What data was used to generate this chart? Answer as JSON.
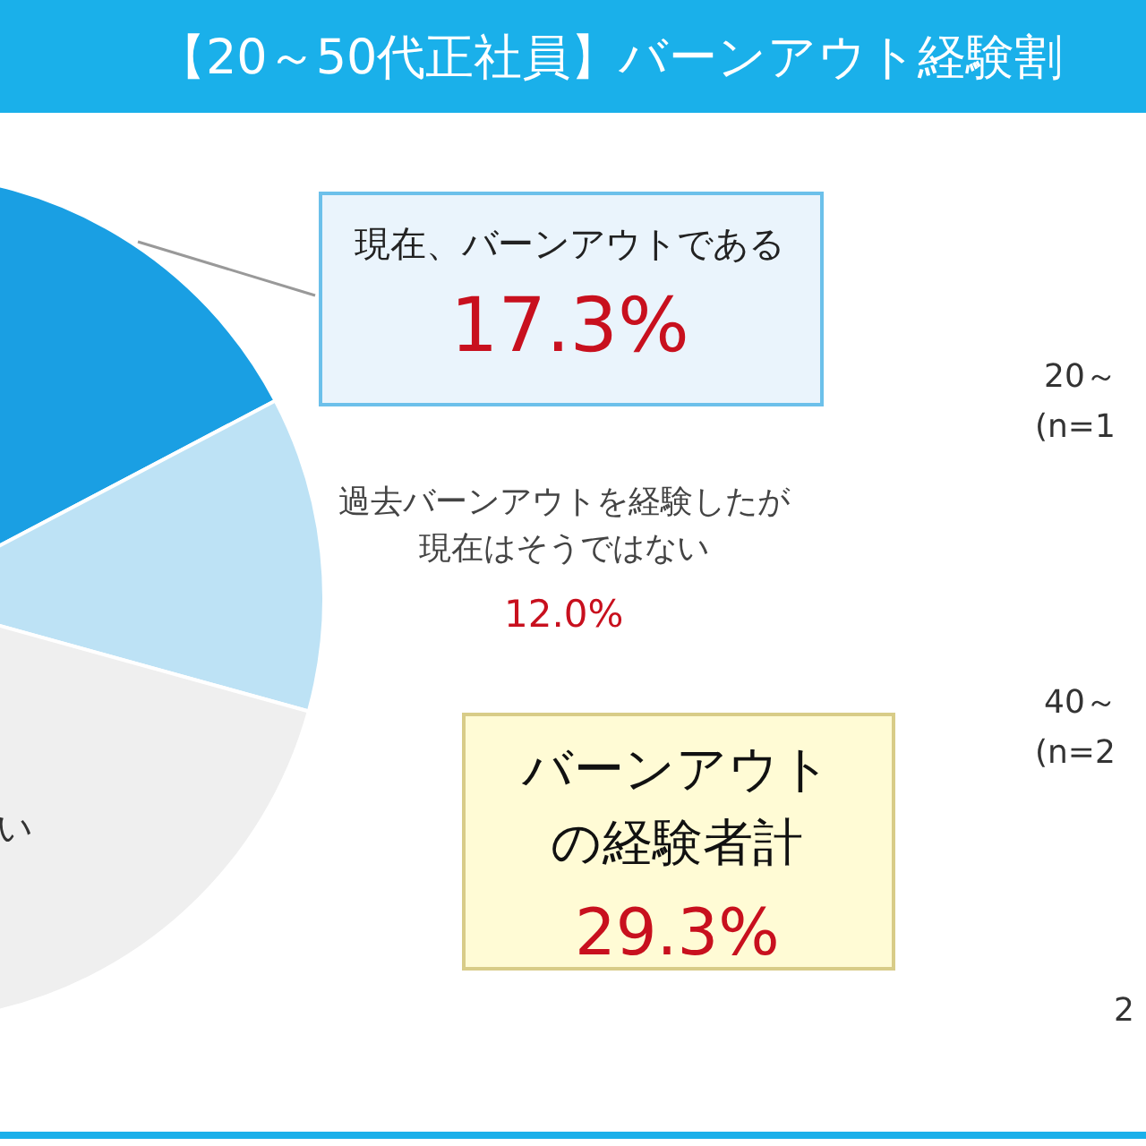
{
  "chart_data": {
    "type": "pie",
    "title": "【20～50代正社員】バーンアウト経験割",
    "categories": [
      "現在、バーンアウトである",
      "過去バーンアウトを経験したが現在はそうではない",
      "い"
    ],
    "values": [
      17.3,
      12.0,
      70.7
    ],
    "value_labels": [
      "17.3%",
      "12.0%",
      null
    ],
    "colors": [
      "#1a9fe3",
      "#bde2f5",
      "#efefef"
    ],
    "annotations": [
      "バーンアウトの経験者計",
      "29.3%",
      "20～",
      "(n=1",
      "40～",
      "(n=2",
      "2"
    ],
    "legend": false
  }
}
